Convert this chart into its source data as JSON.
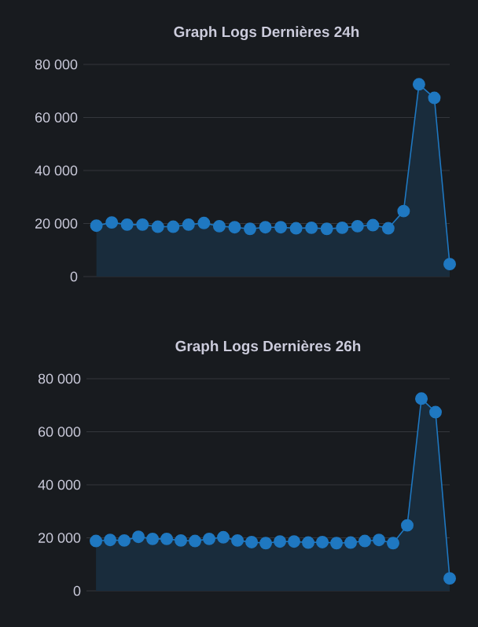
{
  "chart_data": [
    {
      "type": "area",
      "title": "Graph Logs Dernières 24h",
      "categories": [
        null,
        null,
        null,
        null,
        null,
        null,
        null,
        null,
        null,
        null,
        null,
        null,
        null,
        null,
        null,
        null,
        null,
        null,
        null,
        null,
        null,
        null,
        null,
        null
      ],
      "series": [
        {
          "color": "#1f78c1",
          "values": [
            19200,
            20400,
            19600,
            19600,
            18800,
            18800,
            19600,
            20200,
            19000,
            18600,
            18000,
            18600,
            18600,
            18200,
            18400,
            18000,
            18400,
            19000,
            19400,
            18200,
            24700,
            72500,
            67400,
            4700
          ]
        }
      ],
      "ylim": [
        0,
        80000
      ],
      "yticks": [
        0,
        {
          "value": 20000,
          "label": "20 000"
        },
        {
          "value": 40000,
          "label": "40 000"
        },
        {
          "value": 60000,
          "label": "60 000"
        },
        {
          "value": 80000,
          "label": "80 000"
        }
      ],
      "grid": "y",
      "marker": "circle",
      "tick_labels": "y"
    },
    {
      "type": "area",
      "title": "Graph Logs Dernières 26h",
      "categories": [
        null,
        null,
        null,
        null,
        null,
        null,
        null,
        null,
        null,
        null,
        null,
        null,
        null,
        null,
        null,
        null,
        null,
        null,
        null,
        null,
        null,
        null,
        null,
        null,
        null,
        null
      ],
      "series": [
        {
          "color": "#1f78c1",
          "values": [
            18800,
            19200,
            19000,
            20400,
            19600,
            19600,
            19000,
            18800,
            19600,
            20200,
            19000,
            18400,
            18000,
            18600,
            18600,
            18200,
            18400,
            18000,
            18200,
            18800,
            19200,
            18000,
            24700,
            72500,
            67400,
            4700
          ]
        }
      ],
      "ylim": [
        0,
        80000
      ],
      "yticks": [
        0,
        {
          "value": 20000,
          "label": "20 000"
        },
        {
          "value": 40000,
          "label": "40 000"
        },
        {
          "value": 60000,
          "label": "60 000"
        },
        {
          "value": 80000,
          "label": "80 000"
        }
      ],
      "grid": "y",
      "marker": "circle",
      "tick_labels": "y"
    }
  ]
}
